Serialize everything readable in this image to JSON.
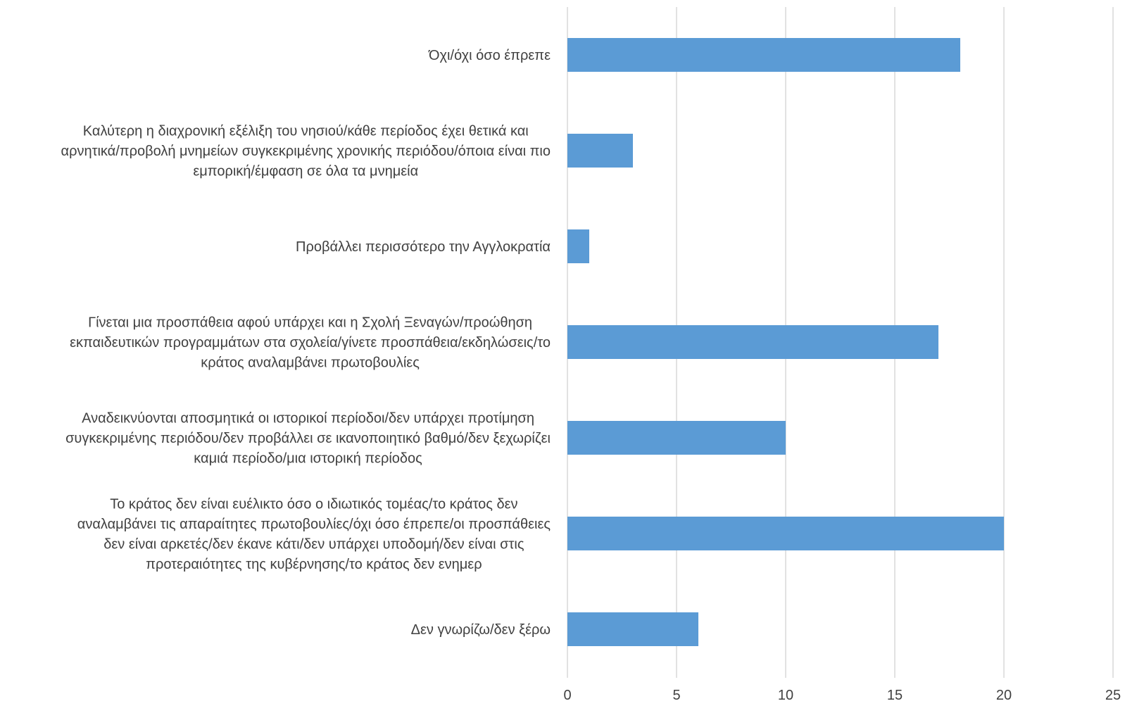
{
  "chart_data": {
    "type": "bar",
    "orientation": "horizontal",
    "title": "",
    "xlabel": "",
    "ylabel": "",
    "xlim": [
      0,
      25
    ],
    "x_ticks": [
      0,
      5,
      10,
      15,
      20,
      25
    ],
    "grid": "vertical",
    "legend": "none",
    "bar_color": "#5B9BD5",
    "grid_color": "#D9D9D9",
    "label_color": "#404040",
    "categories": [
      [
        "Όχι/όχι όσο έπρεπε"
      ],
      [
        "Καλύτερη η διαχρονική εξέλιξη του νησιού/κάθε περίοδος έχει θετικά και",
        "αρνητικά/προβολή μνημείων συγκεκριμένης χρονικής περιόδου/όποια είναι πιο",
        "εμπορική/έμφαση σε όλα τα μνημεία"
      ],
      [
        "Προβάλλει περισσότερο την Αγγλοκρατία"
      ],
      [
        "Γίνεται μια προσπάθεια αφού υπάρχει και η Σχολή Ξεναγών/προώθηση",
        "εκπαιδευτικών προγραμμάτων στα σχολεία/γίνετε προσπάθεια/εκδηλώσεις/το",
        "κράτος αναλαμβάνει πρωτοβουλίες"
      ],
      [
        "Αναδεικνύονται  αποσμητικά οι ιστορικοί περίοδοι/δεν υπάρχει προτίμηση",
        "συγκεκριμένης περιόδου/δεν προβάλλει σε ικανοποιητικό βαθμό/δεν ξεχωρίζει",
        "καμιά περίοδο/μια ιστορική περίοδος"
      ],
      [
        "Το κράτος δεν είναι ευέλικτο όσο ο ιδιωτικός τομέας/το κράτος δεν",
        "αναλαμβάνει τις απαραίτητες πρωτοβουλίες/όχι όσο έπρεπε/οι προσπάθειες",
        "δεν είναι αρκετές/δεν έκανε κάτι/δεν υπάρχει υποδομή/δεν είναι στις",
        "προτεραιότητες της κυβέρνησης/το κράτος δεν ενημερ"
      ],
      [
        "Δεν γνωρίζω/δεν ξέρω"
      ]
    ],
    "values": [
      18,
      3,
      1,
      17,
      10,
      20,
      6
    ]
  }
}
